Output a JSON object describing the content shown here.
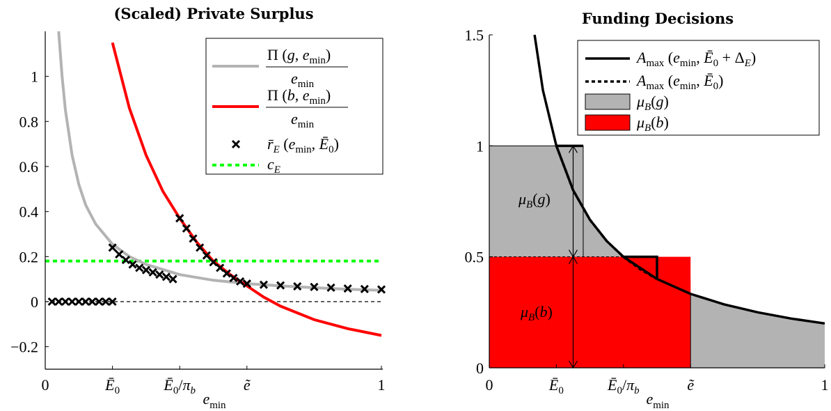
{
  "chart_data": [
    {
      "type": "line",
      "title": "(Scaled) Private Surplus",
      "xlabel": "e_min",
      "xlim": [
        0,
        1
      ],
      "ylim": [
        -0.3,
        1.2
      ],
      "x_ticks": [
        {
          "value": 0,
          "label": "0"
        },
        {
          "value": 0.2,
          "label": "Ē0"
        },
        {
          "value": 0.4,
          "label": "Ē0/πb"
        },
        {
          "value": 0.6,
          "label": "ẽ"
        },
        {
          "value": 1,
          "label": "1"
        }
      ],
      "y_ticks": [
        {
          "value": -0.2,
          "label": "−0.2"
        },
        {
          "value": 0,
          "label": "0"
        },
        {
          "value": 0.2,
          "label": "0.2"
        },
        {
          "value": 0.4,
          "label": "0.4"
        },
        {
          "value": 0.6,
          "label": "0.6"
        },
        {
          "value": 0.8,
          "label": "0.8"
        },
        {
          "value": 1,
          "label": "1"
        }
      ],
      "legend_position": "top-right",
      "series": [
        {
          "name": "Π(g, e_min) / e_min",
          "color": "#b3b3b3",
          "x": [
            0.04,
            0.05,
            0.06,
            0.08,
            0.1,
            0.12,
            0.15,
            0.2,
            0.25,
            0.3,
            0.4,
            0.5,
            0.6,
            0.7,
            0.8,
            0.9,
            1.0
          ],
          "y": [
            1.2,
            1.0,
            0.85,
            0.65,
            0.52,
            0.43,
            0.345,
            0.255,
            0.2,
            0.165,
            0.12,
            0.095,
            0.08,
            0.07,
            0.062,
            0.055,
            0.05
          ]
        },
        {
          "name": "Π(b, e_min) / e_min",
          "color": "#ff0000",
          "x": [
            0.2,
            0.25,
            0.3,
            0.35,
            0.4,
            0.45,
            0.5,
            0.55,
            0.6,
            0.65,
            0.7,
            0.8,
            0.9,
            1.0
          ],
          "y": [
            1.15,
            0.86,
            0.65,
            0.49,
            0.37,
            0.265,
            0.18,
            0.12,
            0.07,
            0.02,
            -0.02,
            -0.08,
            -0.12,
            -0.15
          ]
        },
        {
          "name": "r̄E(e_min, Ē0)",
          "marker": "x",
          "color": "#000000",
          "x": [
            0.02,
            0.04,
            0.06,
            0.08,
            0.1,
            0.12,
            0.14,
            0.16,
            0.18,
            0.2,
            0.2,
            0.22,
            0.24,
            0.26,
            0.28,
            0.3,
            0.32,
            0.34,
            0.36,
            0.38,
            0.4,
            0.4,
            0.42,
            0.44,
            0.46,
            0.48,
            0.5,
            0.52,
            0.54,
            0.56,
            0.58,
            0.6,
            0.6,
            0.65,
            0.7,
            0.75,
            0.8,
            0.85,
            0.9,
            0.95,
            1.0
          ],
          "y": [
            0,
            0,
            0,
            0,
            0,
            0,
            0,
            0,
            0,
            0,
            0.24,
            0.21,
            0.185,
            0.165,
            0.15,
            0.14,
            0.13,
            0.12,
            0.11,
            0.1,
            0.37,
            0.37,
            0.325,
            0.28,
            0.24,
            0.205,
            0.175,
            0.15,
            0.125,
            0.105,
            0.09,
            0.08,
            0.08,
            0.075,
            0.072,
            0.068,
            0.065,
            0.062,
            0.058,
            0.056,
            0.054
          ]
        },
        {
          "name": "c_E",
          "style": "dotted",
          "color": "#00ff00",
          "x": [
            0,
            1
          ],
          "y": [
            0.18,
            0.18
          ]
        }
      ]
    },
    {
      "type": "area",
      "title": "Funding Decisions",
      "xlabel": "e_min",
      "xlim": [
        0,
        1
      ],
      "ylim": [
        0,
        1.5
      ],
      "x_ticks": [
        {
          "value": 0,
          "label": "0"
        },
        {
          "value": 0.2,
          "label": "Ē0"
        },
        {
          "value": 0.4,
          "label": "Ē0/πb"
        },
        {
          "value": 0.6,
          "label": "ẽ"
        },
        {
          "value": 1,
          "label": "1"
        }
      ],
      "y_ticks": [
        {
          "value": 0,
          "label": "0"
        },
        {
          "value": 0.5,
          "label": "0.5"
        },
        {
          "value": 1,
          "label": "1"
        },
        {
          "value": 1.5,
          "label": "1.5"
        }
      ],
      "legend_position": "top-right",
      "series": [
        {
          "name": "Amax(e_min, Ē0 + ΔE)",
          "color": "#000000",
          "x": [
            0.135,
            0.16,
            0.2,
            0.25,
            0.3,
            0.35,
            0.4,
            0.5,
            0.6,
            0.7,
            0.8,
            0.9,
            1.0
          ],
          "y": [
            1.5,
            1.25,
            1.0,
            0.8,
            0.667,
            0.571,
            0.5,
            0.4,
            0.333,
            0.286,
            0.25,
            0.222,
            0.2
          ]
        },
        {
          "name": "Amax(e_min, Ē0)",
          "style": "dotted",
          "color": "#000000",
          "x": [
            0.2,
            0.25,
            0.3,
            0.35,
            0.4,
            0.45,
            0.5
          ],
          "y": [
            1.0,
            0.8,
            0.667,
            0.571,
            0.5,
            0.444,
            0.4
          ]
        },
        {
          "name": "μB(g)",
          "type": "area",
          "color": "#b3b3b3",
          "regions": [
            {
              "x0": 0,
              "x1": 0.28,
              "y0": 0.5,
              "y1": 1.0
            },
            {
              "x0": 0.28,
              "x1": 0.4,
              "y0": 0.5,
              "y1": "curve"
            },
            {
              "x0": 0.6,
              "x1": 1.0,
              "y0": 0,
              "y1": "curve"
            }
          ]
        },
        {
          "name": "μB(b)",
          "type": "area",
          "color": "#ff0000",
          "regions": [
            {
              "x0": 0,
              "x1": 0.6,
              "y0": 0,
              "y1": 0.5
            },
            {
              "x0": 0.5,
              "x1": 0.6,
              "y0": 0.333,
              "y1": 0.4
            }
          ]
        }
      ],
      "annotations": [
        {
          "label": "μB(g)",
          "from": [
            0.25,
            0.5
          ],
          "to": [
            0.25,
            1.0
          ]
        },
        {
          "label": "μB(b)",
          "from": [
            0.25,
            0.0
          ],
          "to": [
            0.25,
            0.5
          ]
        }
      ]
    }
  ]
}
